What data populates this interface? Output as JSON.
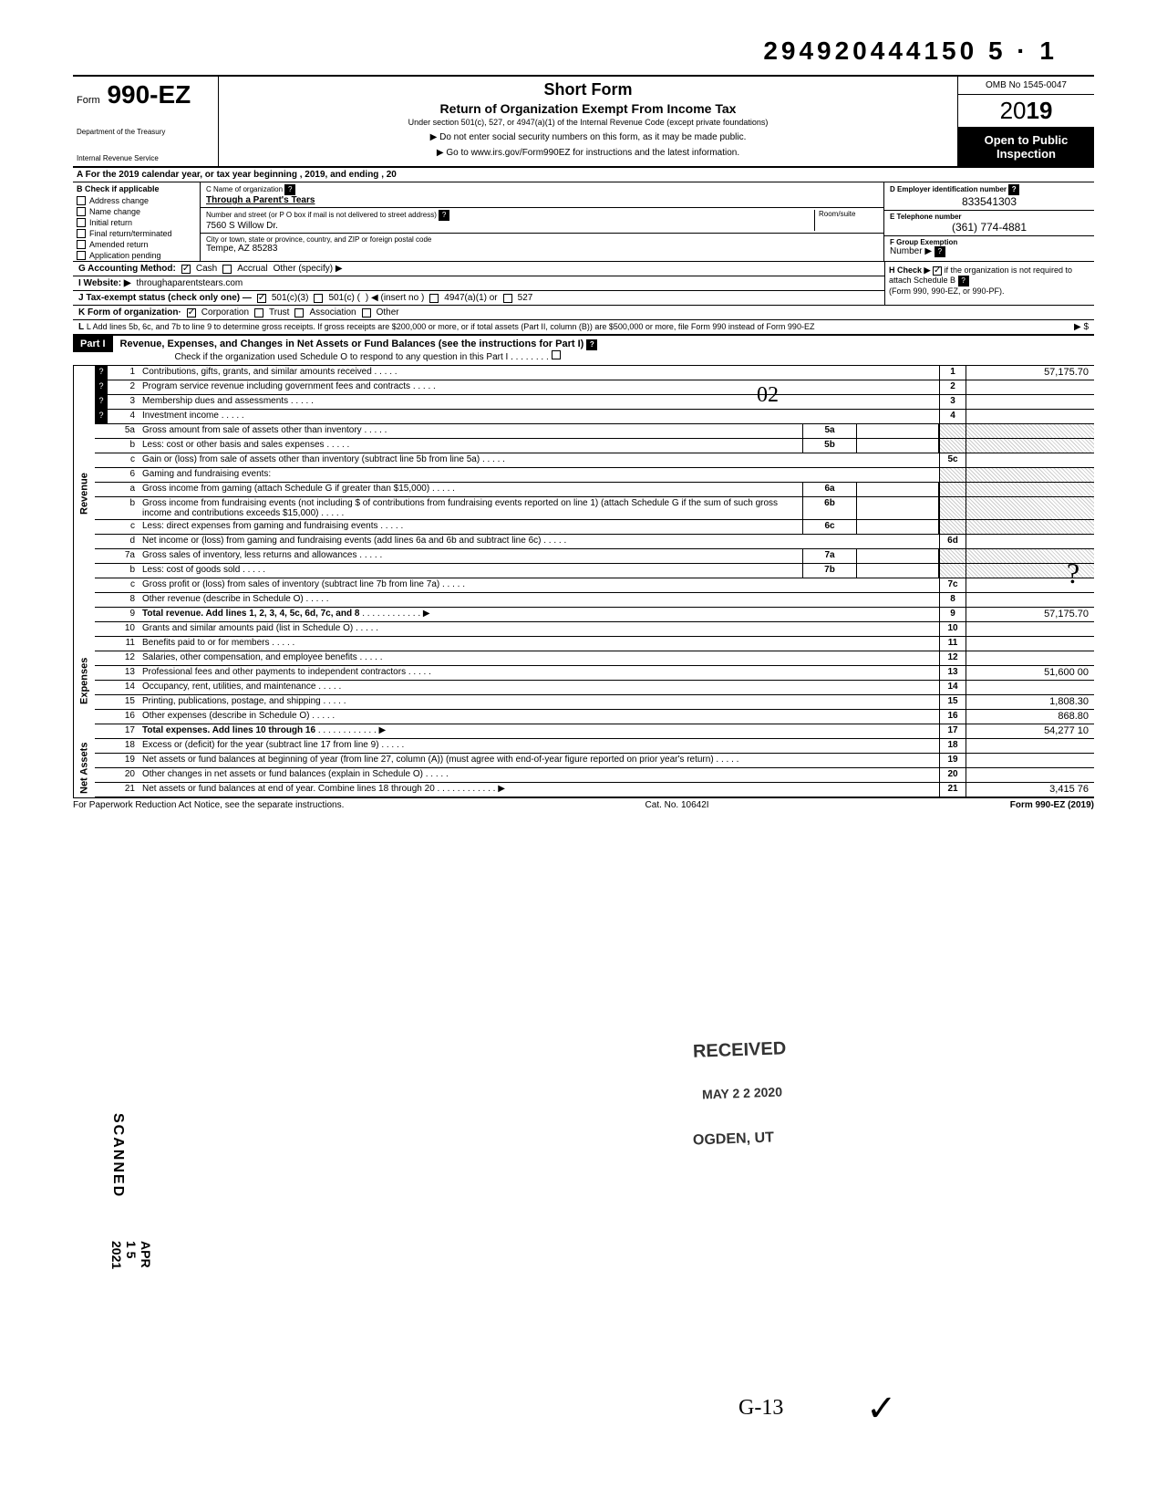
{
  "dln": "294920444150 5 · 1",
  "header": {
    "form_prefix": "Form",
    "form_number": "990-EZ",
    "dept1": "Department of the Treasury",
    "dept2": "Internal Revenue Service",
    "title_short": "Short Form",
    "title_main": "Return of Organization Exempt From Income Tax",
    "title_under": "Under section 501(c), 527, or 4947(a)(1) of the Internal Revenue Code (except private foundations)",
    "arrow1": "▶ Do not enter social security numbers on this form, as it may be made public.",
    "arrow2": "▶ Go to www.irs.gov/Form990EZ for instructions and the latest information.",
    "omb": "OMB No 1545-0047",
    "year": "2019",
    "open": "Open to Public Inspection"
  },
  "line_a": "A For the 2019 calendar year, or tax year beginning                                              , 2019, and ending                                        , 20",
  "col_b": {
    "header": "B Check if applicable",
    "items": [
      "Address change",
      "Name change",
      "Initial return",
      "Final return/terminated",
      "Amended return",
      "Application pending"
    ]
  },
  "col_c": {
    "name_label": "C Name of organization",
    "name_val": "Through a Parent's Tears",
    "street_label": "Number and street (or P O box if mail is not delivered to street address)",
    "room_label": "Room/suite",
    "street_val": "7560 S Willow Dr.",
    "city_label": "City or town, state or province, country, and ZIP or foreign postal code",
    "city_val": "Tempe, AZ 85283"
  },
  "col_de": {
    "d_label": "D Employer identification number",
    "d_val": "833541303",
    "e_label": "E Telephone number",
    "e_val": "(361) 774-4881",
    "f_label": "F Group Exemption",
    "f_label2": "Number ▶"
  },
  "line_g": {
    "label": "G Accounting Method:",
    "opt1": "Cash",
    "opt2": "Accrual",
    "opt3": "Other (specify) ▶"
  },
  "line_h": {
    "label": "H Check ▶",
    "text": "if the organization is not required to attach Schedule B",
    "text2": "(Form 990, 990-EZ, or 990-PF)."
  },
  "line_i": {
    "label": "I  Website: ▶",
    "val": "throughaparentstears.com"
  },
  "line_j": {
    "label": "J Tax-exempt status (check only one) —",
    "opt1": "501(c)(3)",
    "opt2": "501(c) (",
    "opt2b": ") ◀ (insert no )",
    "opt3": "4947(a)(1) or",
    "opt4": "527"
  },
  "line_k": {
    "label": "K Form of organization·",
    "opt1": "Corporation",
    "opt2": "Trust",
    "opt3": "Association",
    "opt4": "Other"
  },
  "line_l": "L Add lines 5b, 6c, and 7b to line 9 to determine gross receipts. If gross receipts are $200,000 or more, or if total assets (Part II, column (B)) are $500,000 or more, file Form 990 instead of Form 990-EZ",
  "line_l_arrow": "▶  $",
  "part1": {
    "label": "Part I",
    "title": "Revenue, Expenses, and Changes in Net Assets or Fund Balances (see the instructions for Part I)",
    "subtitle": "Check if the organization used Schedule O to respond to any question in this Part I"
  },
  "sections": {
    "revenue": "Revenue",
    "expenses": "Expenses",
    "netassets": "Net Assets"
  },
  "rows": [
    {
      "n": "1",
      "desc": "Contributions, gifts, grants, and similar amounts received",
      "rn": "1",
      "amt": "57,175.70",
      "help": true
    },
    {
      "n": "2",
      "desc": "Program service revenue including government fees and contracts",
      "rn": "2",
      "amt": "",
      "help": true
    },
    {
      "n": "3",
      "desc": "Membership dues and assessments",
      "rn": "3",
      "amt": "",
      "help": true
    },
    {
      "n": "4",
      "desc": "Investment income",
      "rn": "4",
      "amt": "",
      "help": true
    },
    {
      "n": "5a",
      "desc": "Gross amount from sale of assets other than inventory",
      "mid": "5a",
      "shaded": true
    },
    {
      "n": "b",
      "desc": "Less: cost or other basis and sales expenses",
      "mid": "5b",
      "shaded": true
    },
    {
      "n": "c",
      "desc": "Gain or (loss) from sale of assets other than inventory (subtract line 5b from line 5a)",
      "rn": "5c",
      "amt": ""
    },
    {
      "n": "6",
      "desc": "Gaming and fundraising events:",
      "shaded": true,
      "nomid": true
    },
    {
      "n": "a",
      "desc": "Gross income from gaming (attach Schedule G if greater than $15,000)",
      "mid": "6a",
      "shaded": true
    },
    {
      "n": "b",
      "desc": "Gross income from fundraising events (not including  $                        of contributions from fundraising events reported on line 1) (attach Schedule G if the sum of such gross income and contributions exceeds $15,000)",
      "mid": "6b",
      "shaded": true
    },
    {
      "n": "c",
      "desc": "Less: direct expenses from gaming and fundraising events",
      "mid": "6c",
      "shaded": true
    },
    {
      "n": "d",
      "desc": "Net income or (loss) from gaming and fundraising events (add lines 6a and 6b and subtract line 6c)",
      "rn": "6d",
      "amt": ""
    },
    {
      "n": "7a",
      "desc": "Gross sales of inventory, less returns and allowances",
      "mid": "7a",
      "shaded": true
    },
    {
      "n": "b",
      "desc": "Less: cost of goods sold",
      "mid": "7b",
      "shaded": true
    },
    {
      "n": "c",
      "desc": "Gross profit or (loss) from sales of inventory (subtract line 7b from line 7a)",
      "rn": "7c",
      "amt": ""
    },
    {
      "n": "8",
      "desc": "Other revenue (describe in Schedule O)",
      "rn": "8",
      "amt": ""
    },
    {
      "n": "9",
      "desc": "Total revenue. Add lines 1, 2, 3, 4, 5c, 6d, 7c, and 8",
      "rn": "9",
      "amt": "57,175.70",
      "bold": true,
      "arrow": true
    }
  ],
  "exp_rows": [
    {
      "n": "10",
      "desc": "Grants and similar amounts paid (list in Schedule O)",
      "rn": "10",
      "amt": ""
    },
    {
      "n": "11",
      "desc": "Benefits paid to or for members",
      "rn": "11",
      "amt": ""
    },
    {
      "n": "12",
      "desc": "Salaries, other compensation, and employee benefits",
      "rn": "12",
      "amt": ""
    },
    {
      "n": "13",
      "desc": "Professional fees and other payments to independent contractors",
      "rn": "13",
      "amt": "51,600 00"
    },
    {
      "n": "14",
      "desc": "Occupancy, rent, utilities, and maintenance",
      "rn": "14",
      "amt": ""
    },
    {
      "n": "15",
      "desc": "Printing, publications, postage, and shipping",
      "rn": "15",
      "amt": "1,808.30"
    },
    {
      "n": "16",
      "desc": "Other expenses (describe in Schedule O)",
      "rn": "16",
      "amt": "868.80"
    },
    {
      "n": "17",
      "desc": "Total expenses. Add lines 10 through 16",
      "rn": "17",
      "amt": "54,277 10",
      "bold": true,
      "arrow": true
    }
  ],
  "na_rows": [
    {
      "n": "18",
      "desc": "Excess or (deficit) for the year (subtract line 17 from line 9)",
      "rn": "18",
      "amt": ""
    },
    {
      "n": "19",
      "desc": "Net assets or fund balances at beginning of year (from line 27, column (A)) (must agree with end-of-year figure reported on prior year's return)",
      "rn": "19",
      "amt": ""
    },
    {
      "n": "20",
      "desc": "Other changes in net assets or fund balances (explain in Schedule O)",
      "rn": "20",
      "amt": ""
    },
    {
      "n": "21",
      "desc": "Net assets or fund balances at end of year. Combine lines 18 through 20",
      "rn": "21",
      "amt": "3,415 76",
      "arrow": true
    }
  ],
  "footer": {
    "left": "For Paperwork Reduction Act Notice, see the separate instructions.",
    "mid": "Cat. No. 10642I",
    "right": "Form 990-EZ (2019)"
  },
  "stamps": {
    "received": "RECEIVED",
    "date": "MAY 2 2 2020",
    "ogden": "OGDEN, UT",
    "scanned": "SCANNED",
    "apr": "APR 1 5 2021"
  },
  "handwritten": {
    "o2": "02",
    "q": "?",
    "gb": "G-13",
    "check": "✓"
  }
}
